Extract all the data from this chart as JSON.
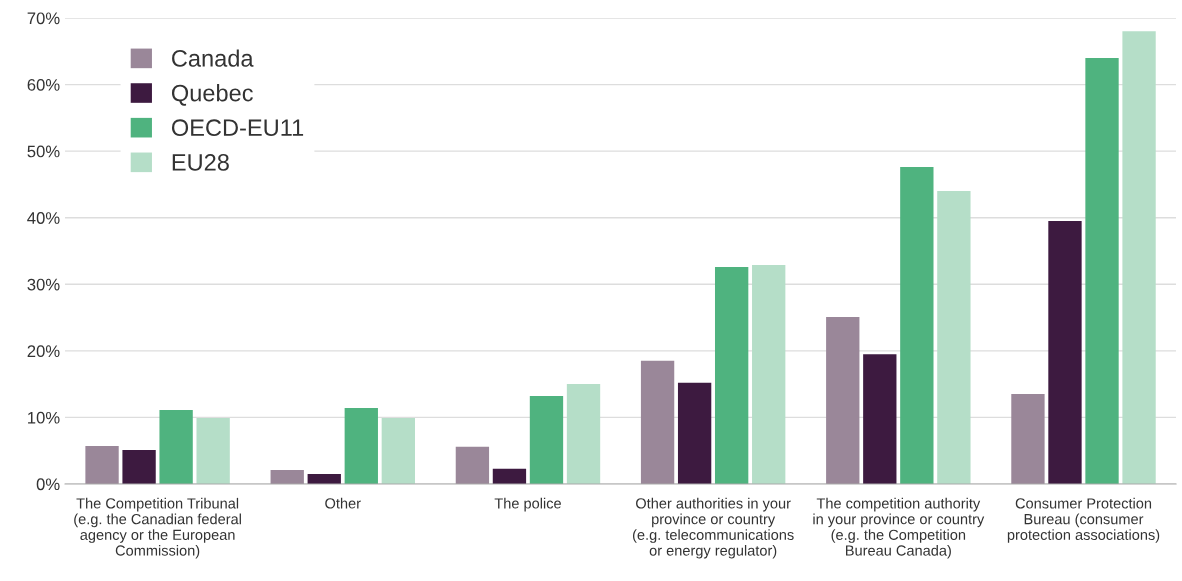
{
  "chart_data": {
    "type": "bar",
    "categories": [
      "The Competition Tribunal\n(e.g. the Canadian federal\nagency or the European\nCommission)",
      "Other",
      "The police",
      "Other authorities in your\nprovince or country\n(e.g. telecommunications\nor energy regulator)",
      "The competition authority\nin your province or country\n(e.g. the Competition\nBureau Canada)",
      "Consumer Protection\nBureau (consumer\nprotection associations)"
    ],
    "series": [
      {
        "name": "Canada",
        "color": "#9a8799",
        "values": [
          5.7,
          2.1,
          5.6,
          18.5,
          25.1,
          13.5
        ]
      },
      {
        "name": "Quebec",
        "color": "#3d1a40",
        "values": [
          5.1,
          1.5,
          2.3,
          15.2,
          19.5,
          39.5
        ]
      },
      {
        "name": "OECD-EU11",
        "color": "#4fb37f",
        "values": [
          11.1,
          11.4,
          13.2,
          32.6,
          47.6,
          64.0
        ]
      },
      {
        "name": "EU28",
        "color": "#b5dec8",
        "values": [
          9.9,
          9.9,
          15.0,
          32.9,
          44.0,
          68.0
        ]
      }
    ],
    "ylim": [
      0,
      70
    ],
    "yticks": [
      {
        "value": 0,
        "label": "0%"
      },
      {
        "value": 10,
        "label": "10%"
      },
      {
        "value": 20,
        "label": "20%"
      },
      {
        "value": 30,
        "label": "30%"
      },
      {
        "value": 40,
        "label": "40%"
      },
      {
        "value": 50,
        "label": "50%"
      },
      {
        "value": 60,
        "label": "60%"
      },
      {
        "value": 70,
        "label": "70%"
      }
    ],
    "grid": "y",
    "legend": "top left"
  }
}
